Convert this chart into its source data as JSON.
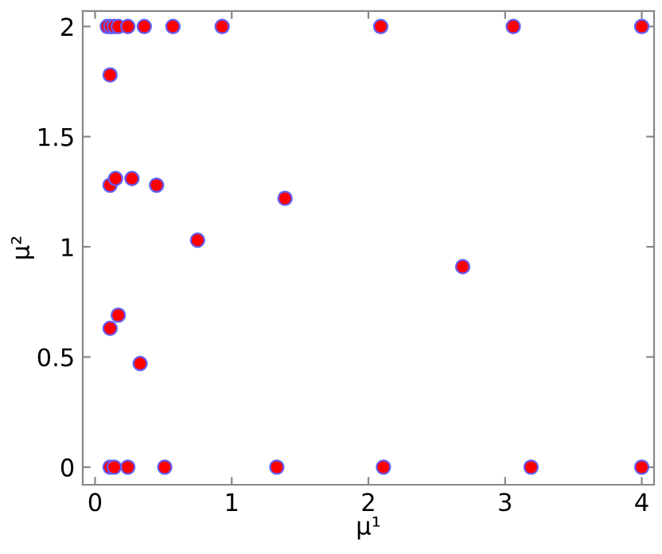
{
  "chart_data": {
    "type": "scatter",
    "xlabel": "μ¹",
    "ylabel": "μ²",
    "xlim": [
      -0.09,
      4.09
    ],
    "ylim": [
      -0.08,
      2.07
    ],
    "xticks": [
      0,
      1,
      2,
      3,
      4
    ],
    "yticks": [
      0,
      0.5,
      1,
      1.5,
      2
    ],
    "grid": false,
    "marker": "circle",
    "series": [
      {
        "color": "#ff0000",
        "x": [
          0.09,
          0.115,
          0.14,
          0.17,
          0.24,
          0.36,
          0.57,
          0.93,
          2.09,
          3.06,
          4.0,
          0.11,
          0.11,
          0.15,
          0.27,
          0.45,
          1.39,
          0.75,
          0.11,
          0.17,
          0.33,
          0.11,
          0.14,
          0.24,
          0.51,
          1.33,
          2.11,
          3.19,
          4.0,
          2.69
        ],
        "values": [
          2,
          2,
          2,
          2,
          2,
          2,
          2,
          2,
          2,
          2,
          2,
          1.78,
          1.28,
          1.31,
          1.31,
          1.28,
          1.22,
          1.03,
          0.63,
          0.69,
          0.47,
          0,
          0,
          0,
          0,
          0,
          0,
          0,
          0,
          0.91
        ]
      }
    ]
  }
}
